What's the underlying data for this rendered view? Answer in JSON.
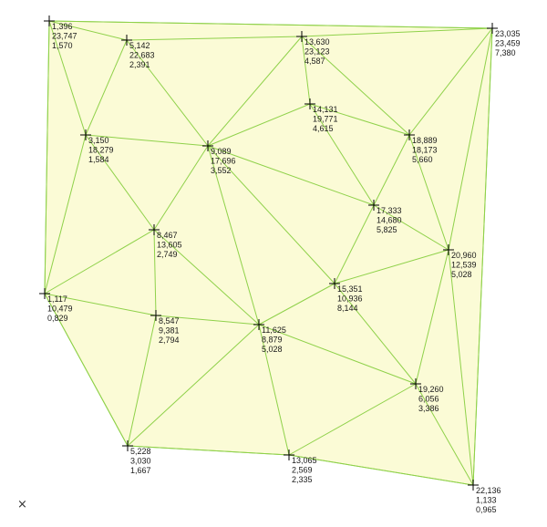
{
  "diagram": {
    "type": "triangulated-irregular-network",
    "colors": {
      "fill": "#fbfbd6",
      "edge": "#8fd14a",
      "marker": "#000000"
    },
    "points": [
      {
        "id": "p1",
        "labels": [
          "1,396",
          "23,747",
          "1,570"
        ]
      },
      {
        "id": "p2",
        "labels": [
          "5,142",
          "22,683",
          "2,391"
        ]
      },
      {
        "id": "p3",
        "labels": [
          "13,630",
          "23,123",
          "4,587"
        ]
      },
      {
        "id": "p4",
        "labels": [
          "23,035",
          "23,459",
          "7,380"
        ]
      },
      {
        "id": "p5",
        "labels": [
          "14,131",
          "19,771",
          "4,615"
        ]
      },
      {
        "id": "p6",
        "labels": [
          "3,150",
          "18,279",
          "1,584"
        ]
      },
      {
        "id": "p7",
        "labels": [
          "9,089",
          "17,696",
          "3,552"
        ]
      },
      {
        "id": "p8",
        "labels": [
          "18,889",
          "18,173",
          "5,660"
        ]
      },
      {
        "id": "p9",
        "labels": [
          "17,333",
          "14,680",
          "5,825"
        ]
      },
      {
        "id": "p10",
        "labels": [
          "8,467",
          "13,605",
          "2,749"
        ]
      },
      {
        "id": "p11",
        "labels": [
          "20,960",
          "12,539",
          "5,028"
        ]
      },
      {
        "id": "p12",
        "labels": [
          "15,351",
          "10,936",
          "8,144"
        ]
      },
      {
        "id": "p13",
        "labels": [
          "1,117",
          "10,479",
          "0,829"
        ]
      },
      {
        "id": "p14",
        "labels": [
          "8,547",
          "9,381",
          "2,794"
        ]
      },
      {
        "id": "p15",
        "labels": [
          "11,625",
          "8,879",
          "5,028"
        ]
      },
      {
        "id": "p16",
        "labels": [
          "19,260",
          "6,056",
          "3,386"
        ]
      },
      {
        "id": "p17",
        "labels": [
          "5,228",
          "3,030",
          "1,667"
        ]
      },
      {
        "id": "p18",
        "labels": [
          "13,065",
          "2,569",
          "2,335"
        ]
      },
      {
        "id": "p19",
        "labels": [
          "22,136",
          "1,133",
          "0,965"
        ]
      }
    ],
    "edges": [
      [
        "p1",
        "p2"
      ],
      [
        "p1",
        "p4"
      ],
      [
        "p1",
        "p6"
      ],
      [
        "p1",
        "p13"
      ],
      [
        "p2",
        "p3"
      ],
      [
        "p2",
        "p6"
      ],
      [
        "p2",
        "p7"
      ],
      [
        "p3",
        "p4"
      ],
      [
        "p3",
        "p5"
      ],
      [
        "p3",
        "p7"
      ],
      [
        "p3",
        "p8"
      ],
      [
        "p4",
        "p8"
      ],
      [
        "p4",
        "p11"
      ],
      [
        "p4",
        "p19"
      ],
      [
        "p5",
        "p7"
      ],
      [
        "p5",
        "p8"
      ],
      [
        "p5",
        "p9"
      ],
      [
        "p6",
        "p7"
      ],
      [
        "p6",
        "p10"
      ],
      [
        "p6",
        "p13"
      ],
      [
        "p7",
        "p9"
      ],
      [
        "p7",
        "p10"
      ],
      [
        "p7",
        "p12"
      ],
      [
        "p7",
        "p15"
      ],
      [
        "p8",
        "p9"
      ],
      [
        "p8",
        "p11"
      ],
      [
        "p9",
        "p11"
      ],
      [
        "p9",
        "p12"
      ],
      [
        "p10",
        "p13"
      ],
      [
        "p10",
        "p14"
      ],
      [
        "p10",
        "p15"
      ],
      [
        "p11",
        "p12"
      ],
      [
        "p11",
        "p16"
      ],
      [
        "p11",
        "p19"
      ],
      [
        "p12",
        "p15"
      ],
      [
        "p12",
        "p16"
      ],
      [
        "p13",
        "p14"
      ],
      [
        "p13",
        "p17"
      ],
      [
        "p14",
        "p15"
      ],
      [
        "p14",
        "p17"
      ],
      [
        "p15",
        "p16"
      ],
      [
        "p15",
        "p17"
      ],
      [
        "p15",
        "p18"
      ],
      [
        "p16",
        "p18"
      ],
      [
        "p16",
        "p19"
      ],
      [
        "p17",
        "p18"
      ],
      [
        "p18",
        "p19"
      ]
    ],
    "hull": [
      "p1",
      "p4",
      "p19",
      "p18",
      "p17",
      "p13"
    ]
  },
  "ui": {
    "close_glyph": "×",
    "close_icon": "close-icon"
  }
}
